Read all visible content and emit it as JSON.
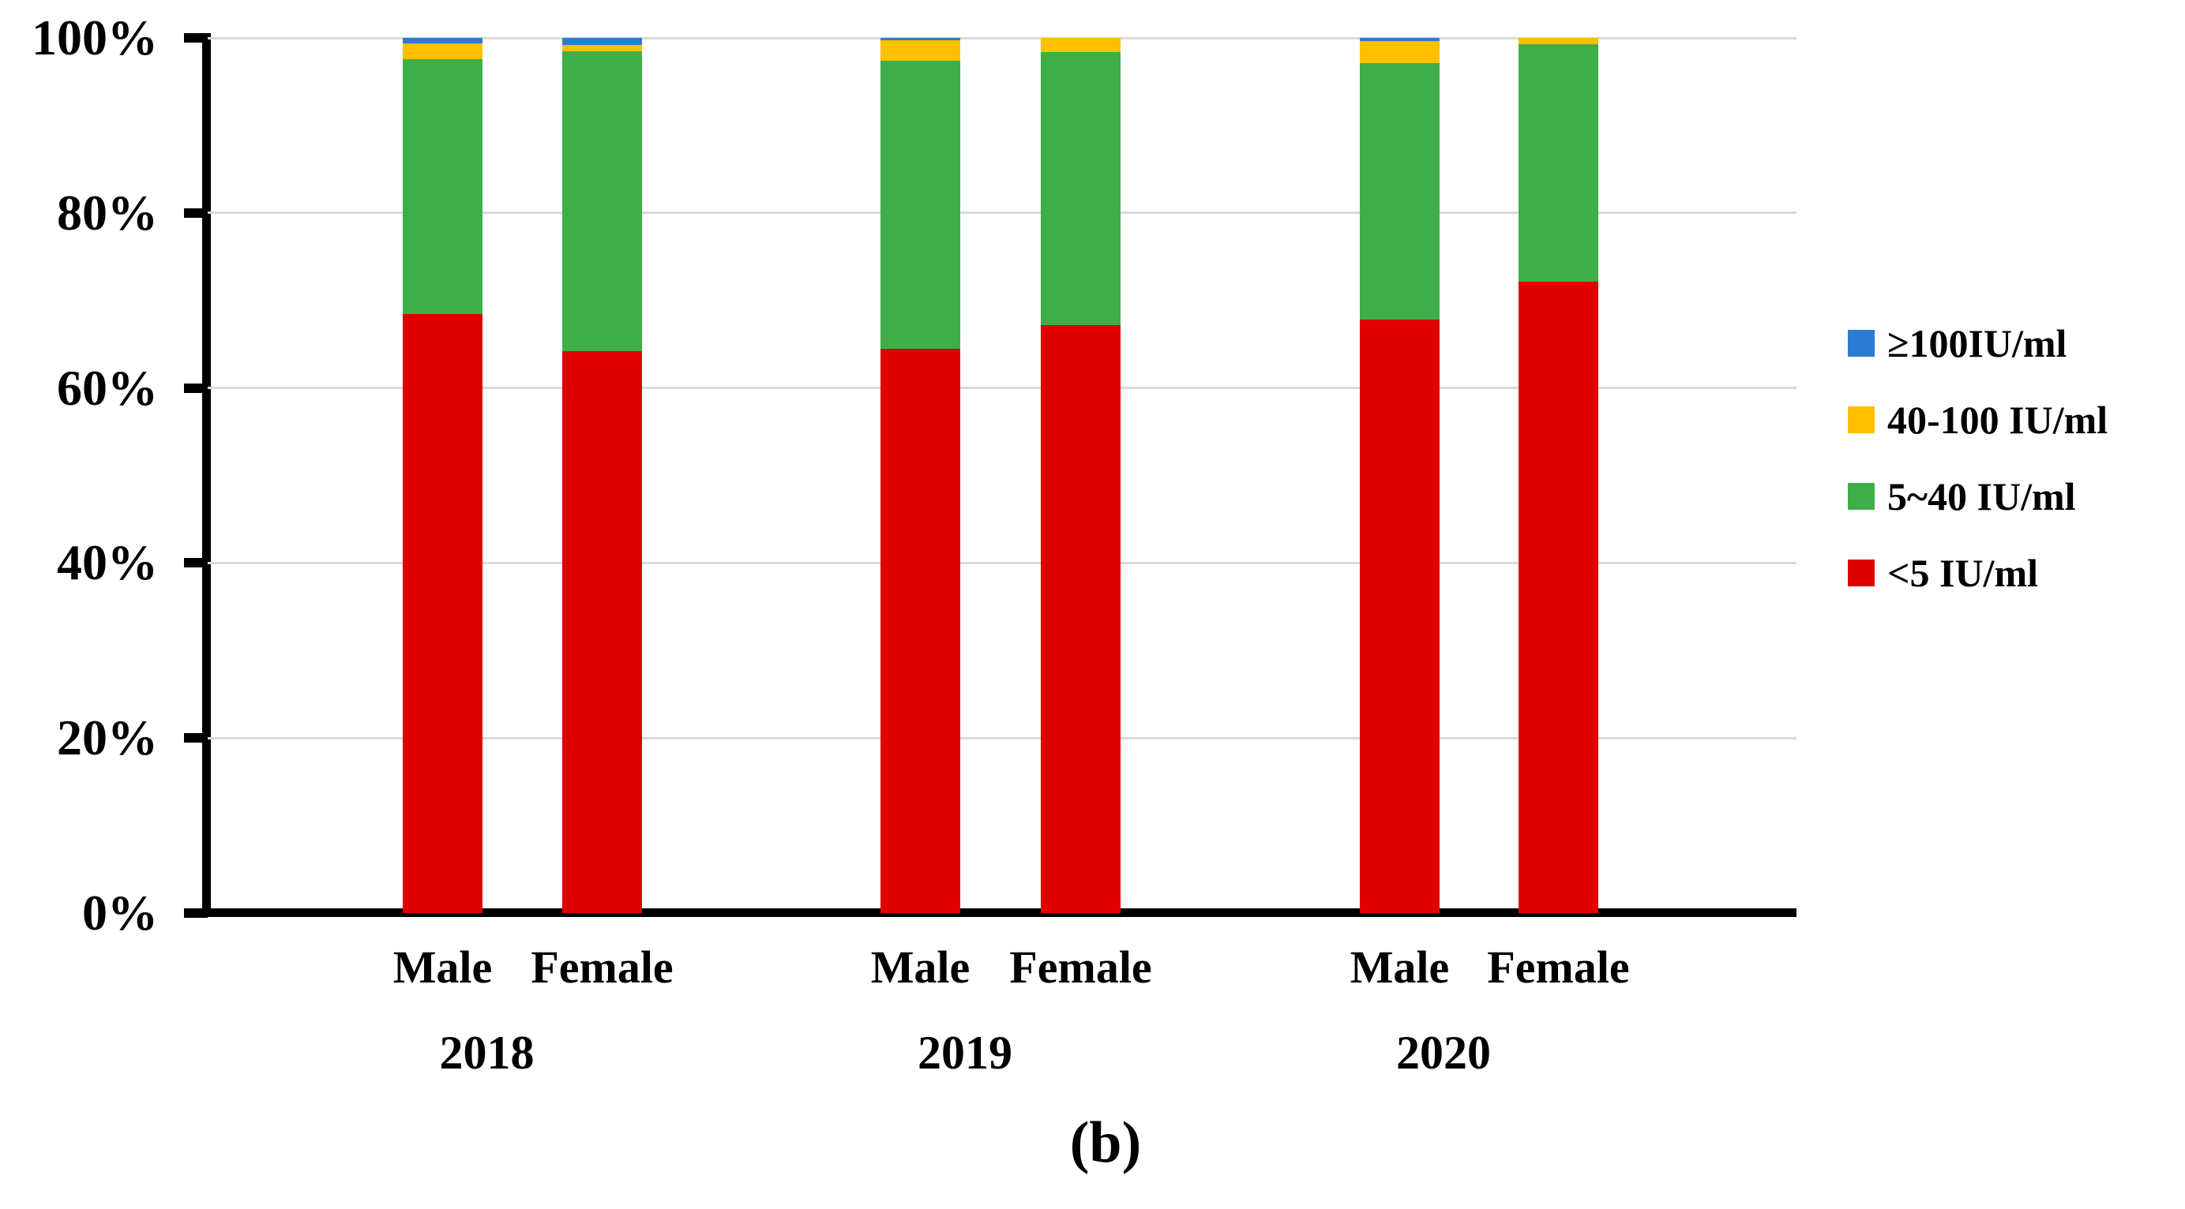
{
  "page": {
    "background": "#ffffff",
    "caption": "(b)"
  },
  "chart_data": {
    "type": "bar",
    "subtype": "100%-stacked-column",
    "title": "",
    "xlabel": "",
    "ylabel": "",
    "ylim": [
      0,
      100
    ],
    "yticks": [
      0,
      20,
      40,
      60,
      80,
      100
    ],
    "ytick_labels": [
      "0%",
      "20%",
      "40%",
      "60%",
      "80%",
      "100%"
    ],
    "grid": true,
    "legend_position": "right",
    "legend": [
      {
        "series": "ge100",
        "label": "≥100IU/ml"
      },
      {
        "series": "s40_100",
        "label": "40-100 IU/ml"
      },
      {
        "series": "s5_40",
        "label": "5~40 IU/ml"
      },
      {
        "series": "lt5",
        "label": "<5 IU/ml"
      }
    ],
    "colors": {
      "ge100": "#2B7BD2",
      "s40_100": "#FFC000",
      "s5_40": "#3FAE49",
      "lt5": "#E00000"
    },
    "axis_color": "#000000",
    "gridline_color": "#D9D9D9",
    "stack_order_bottom_to_top": [
      "lt5",
      "s5_40",
      "s40_100",
      "ge100"
    ],
    "groups": [
      {
        "year": "2018",
        "bars": [
          {
            "label": "Male",
            "values": {
              "lt5": 68.4,
              "s5_40": 29.2,
              "s40_100": 1.8,
              "ge100": 0.6
            }
          },
          {
            "label": "Female",
            "values": {
              "lt5": 64.2,
              "s5_40": 34.3,
              "s40_100": 0.7,
              "ge100": 0.8
            }
          }
        ]
      },
      {
        "year": "2019",
        "bars": [
          {
            "label": "Male",
            "values": {
              "lt5": 64.5,
              "s5_40": 32.9,
              "s40_100": 2.3,
              "ge100": 0.3
            }
          },
          {
            "label": "Female",
            "values": {
              "lt5": 67.2,
              "s5_40": 31.2,
              "s40_100": 1.6,
              "ge100": 0.0
            }
          }
        ]
      },
      {
        "year": "2020",
        "bars": [
          {
            "label": "Male",
            "values": {
              "lt5": 67.8,
              "s5_40": 29.3,
              "s40_100": 2.5,
              "ge100": 0.4
            }
          },
          {
            "label": "Female",
            "values": {
              "lt5": 72.1,
              "s5_40": 27.2,
              "s40_100": 0.7,
              "ge100": 0.0
            }
          }
        ]
      }
    ]
  }
}
